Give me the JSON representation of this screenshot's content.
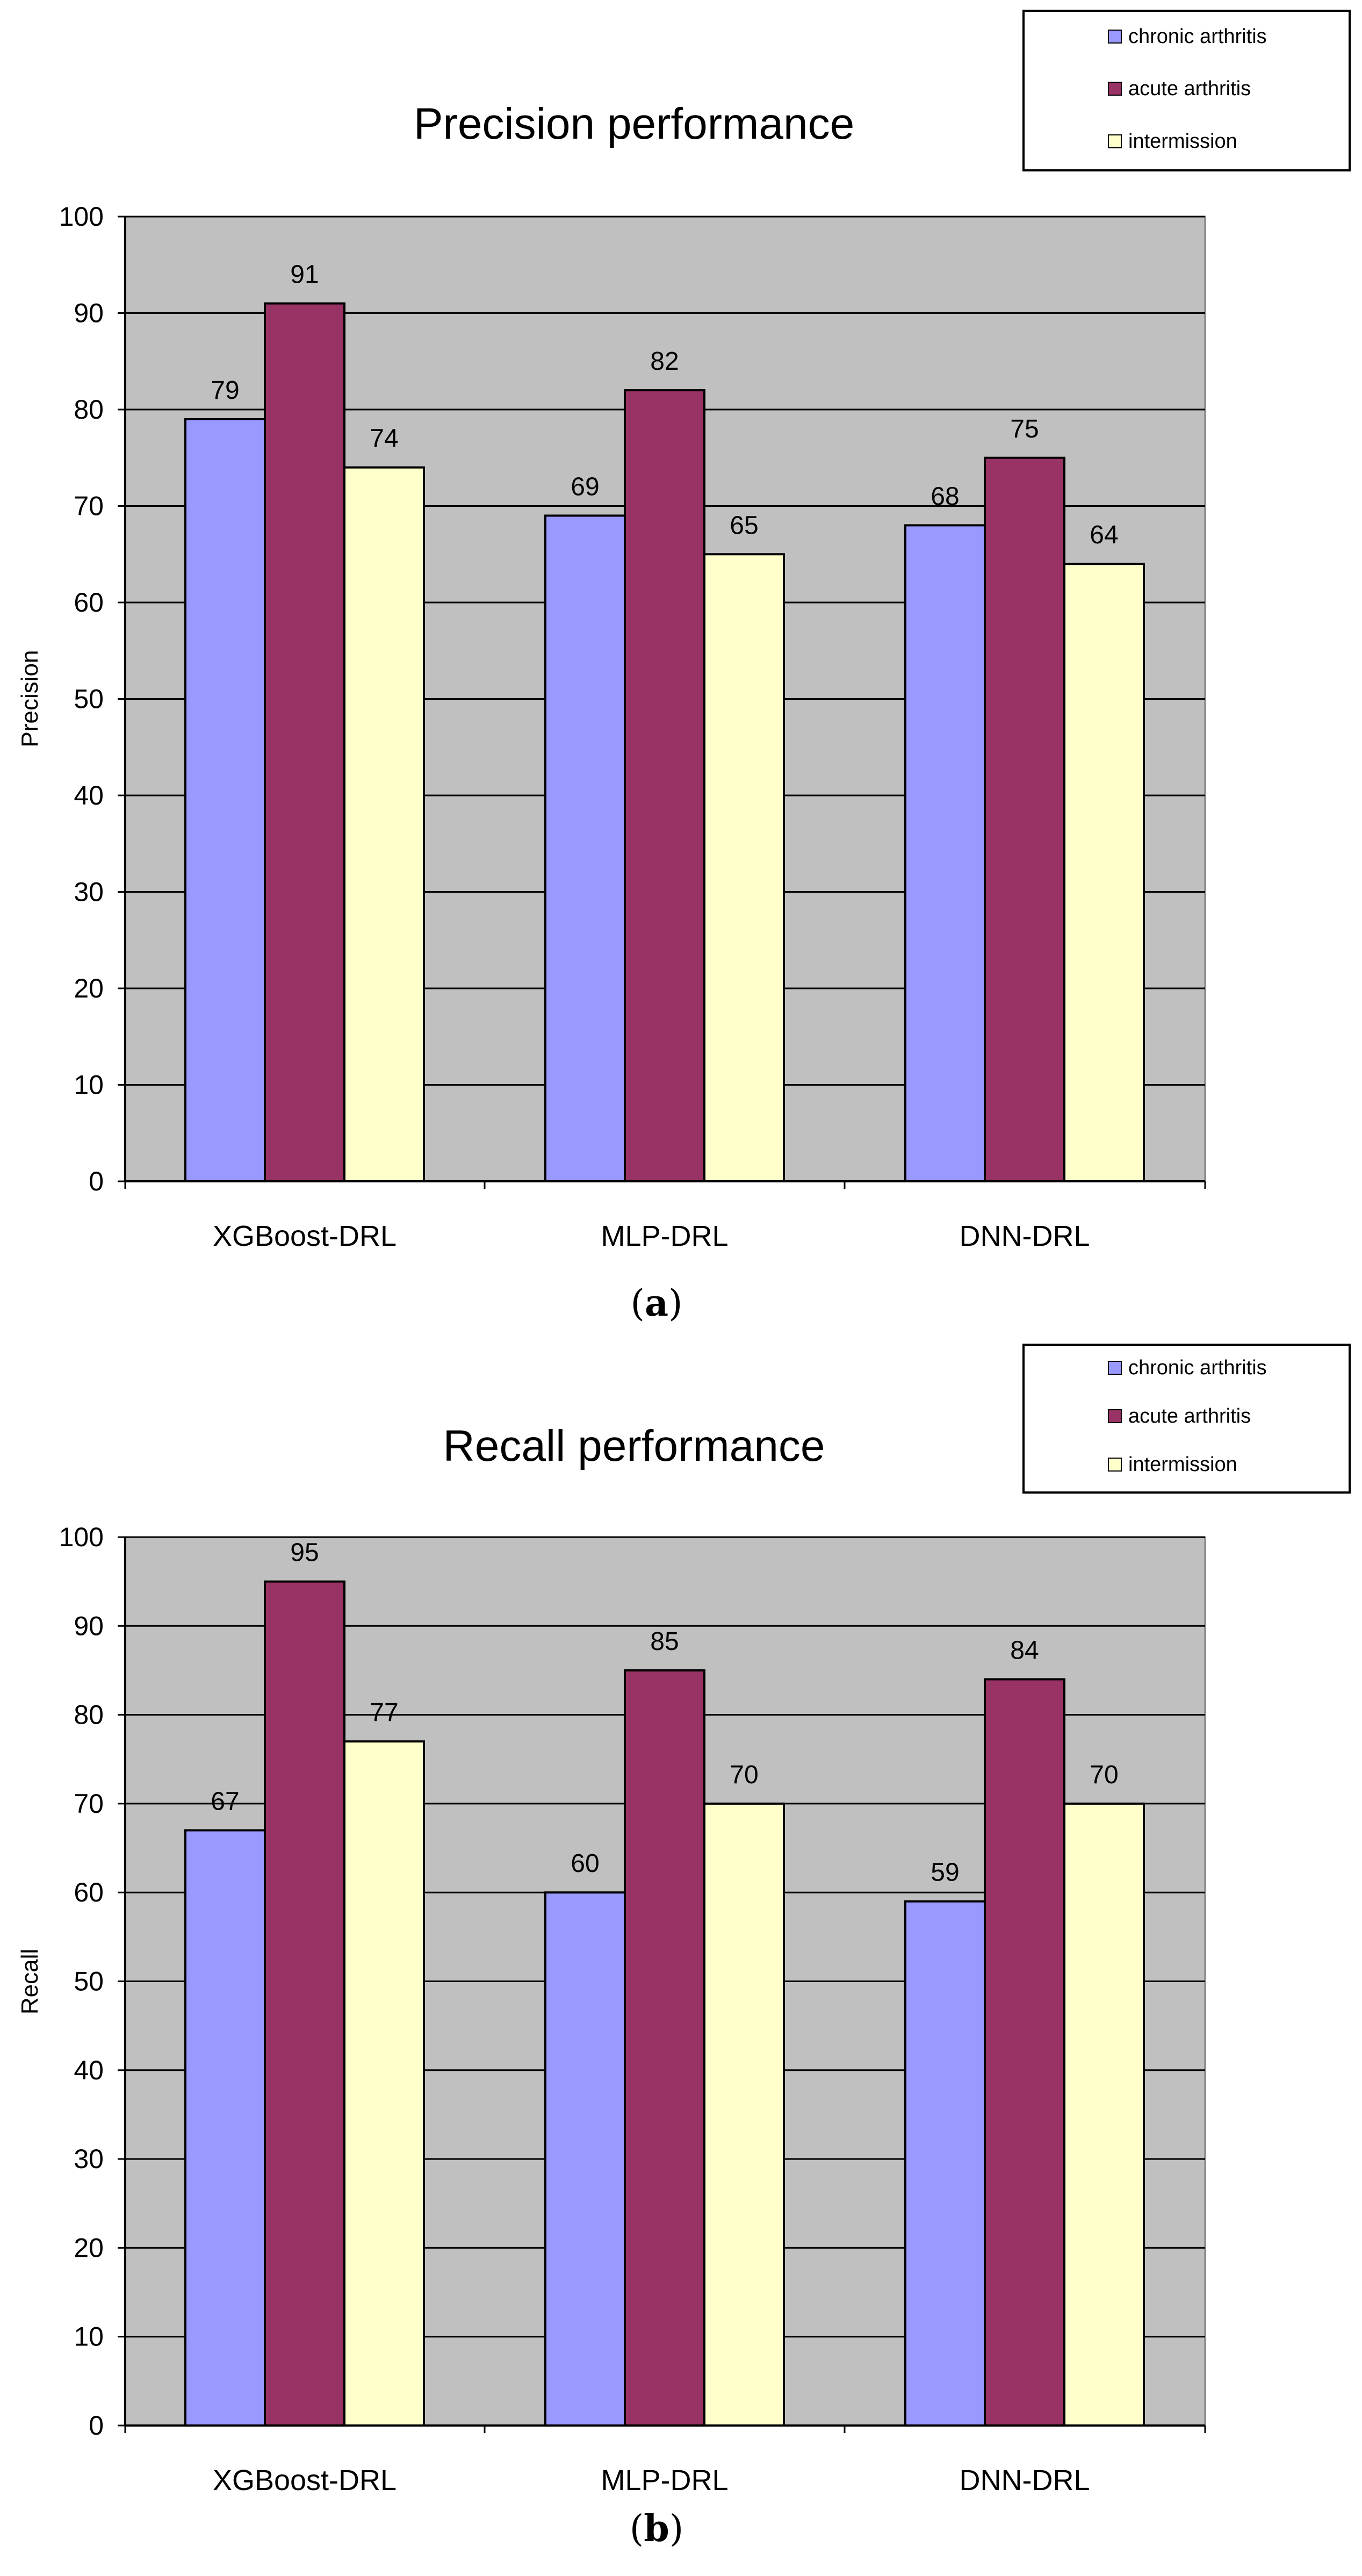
{
  "chart_data": [
    {
      "type": "bar",
      "title": "Precision performance",
      "ylabel": "Precision",
      "xlabel": "",
      "caption": "a",
      "categories": [
        "XGBoost-DRL",
        "MLP-DRL",
        "DNN-DRL"
      ],
      "ylim": [
        0,
        100
      ],
      "yticks": [
        0,
        10,
        20,
        30,
        40,
        50,
        60,
        70,
        80,
        90,
        100
      ],
      "grid": true,
      "legend_position": "top-right",
      "series": [
        {
          "name": "chronic arthritis",
          "color": "#9999ff",
          "values": [
            79,
            69,
            68
          ]
        },
        {
          "name": "acute arthritis",
          "color": "#993366",
          "values": [
            91,
            82,
            75
          ]
        },
        {
          "name": "intermission",
          "color": "#ffffcc",
          "values": [
            74,
            65,
            64
          ]
        }
      ]
    },
    {
      "type": "bar",
      "title": "Recall performance",
      "ylabel": "Recall",
      "xlabel": "",
      "caption": "b",
      "categories": [
        "XGBoost-DRL",
        "MLP-DRL",
        "DNN-DRL"
      ],
      "ylim": [
        0,
        100
      ],
      "yticks": [
        0,
        10,
        20,
        30,
        40,
        50,
        60,
        70,
        80,
        90,
        100
      ],
      "grid": true,
      "legend_position": "top-right",
      "series": [
        {
          "name": "chronic arthritis",
          "color": "#9999ff",
          "values": [
            67,
            60,
            59
          ]
        },
        {
          "name": "acute arthritis",
          "color": "#993366",
          "values": [
            95,
            85,
            84
          ]
        },
        {
          "name": "intermission",
          "color": "#ffffcc",
          "values": [
            77,
            70,
            70
          ]
        }
      ]
    }
  ],
  "colors": {
    "plot_background": "#c0c0c0",
    "gridline": "#000000"
  }
}
